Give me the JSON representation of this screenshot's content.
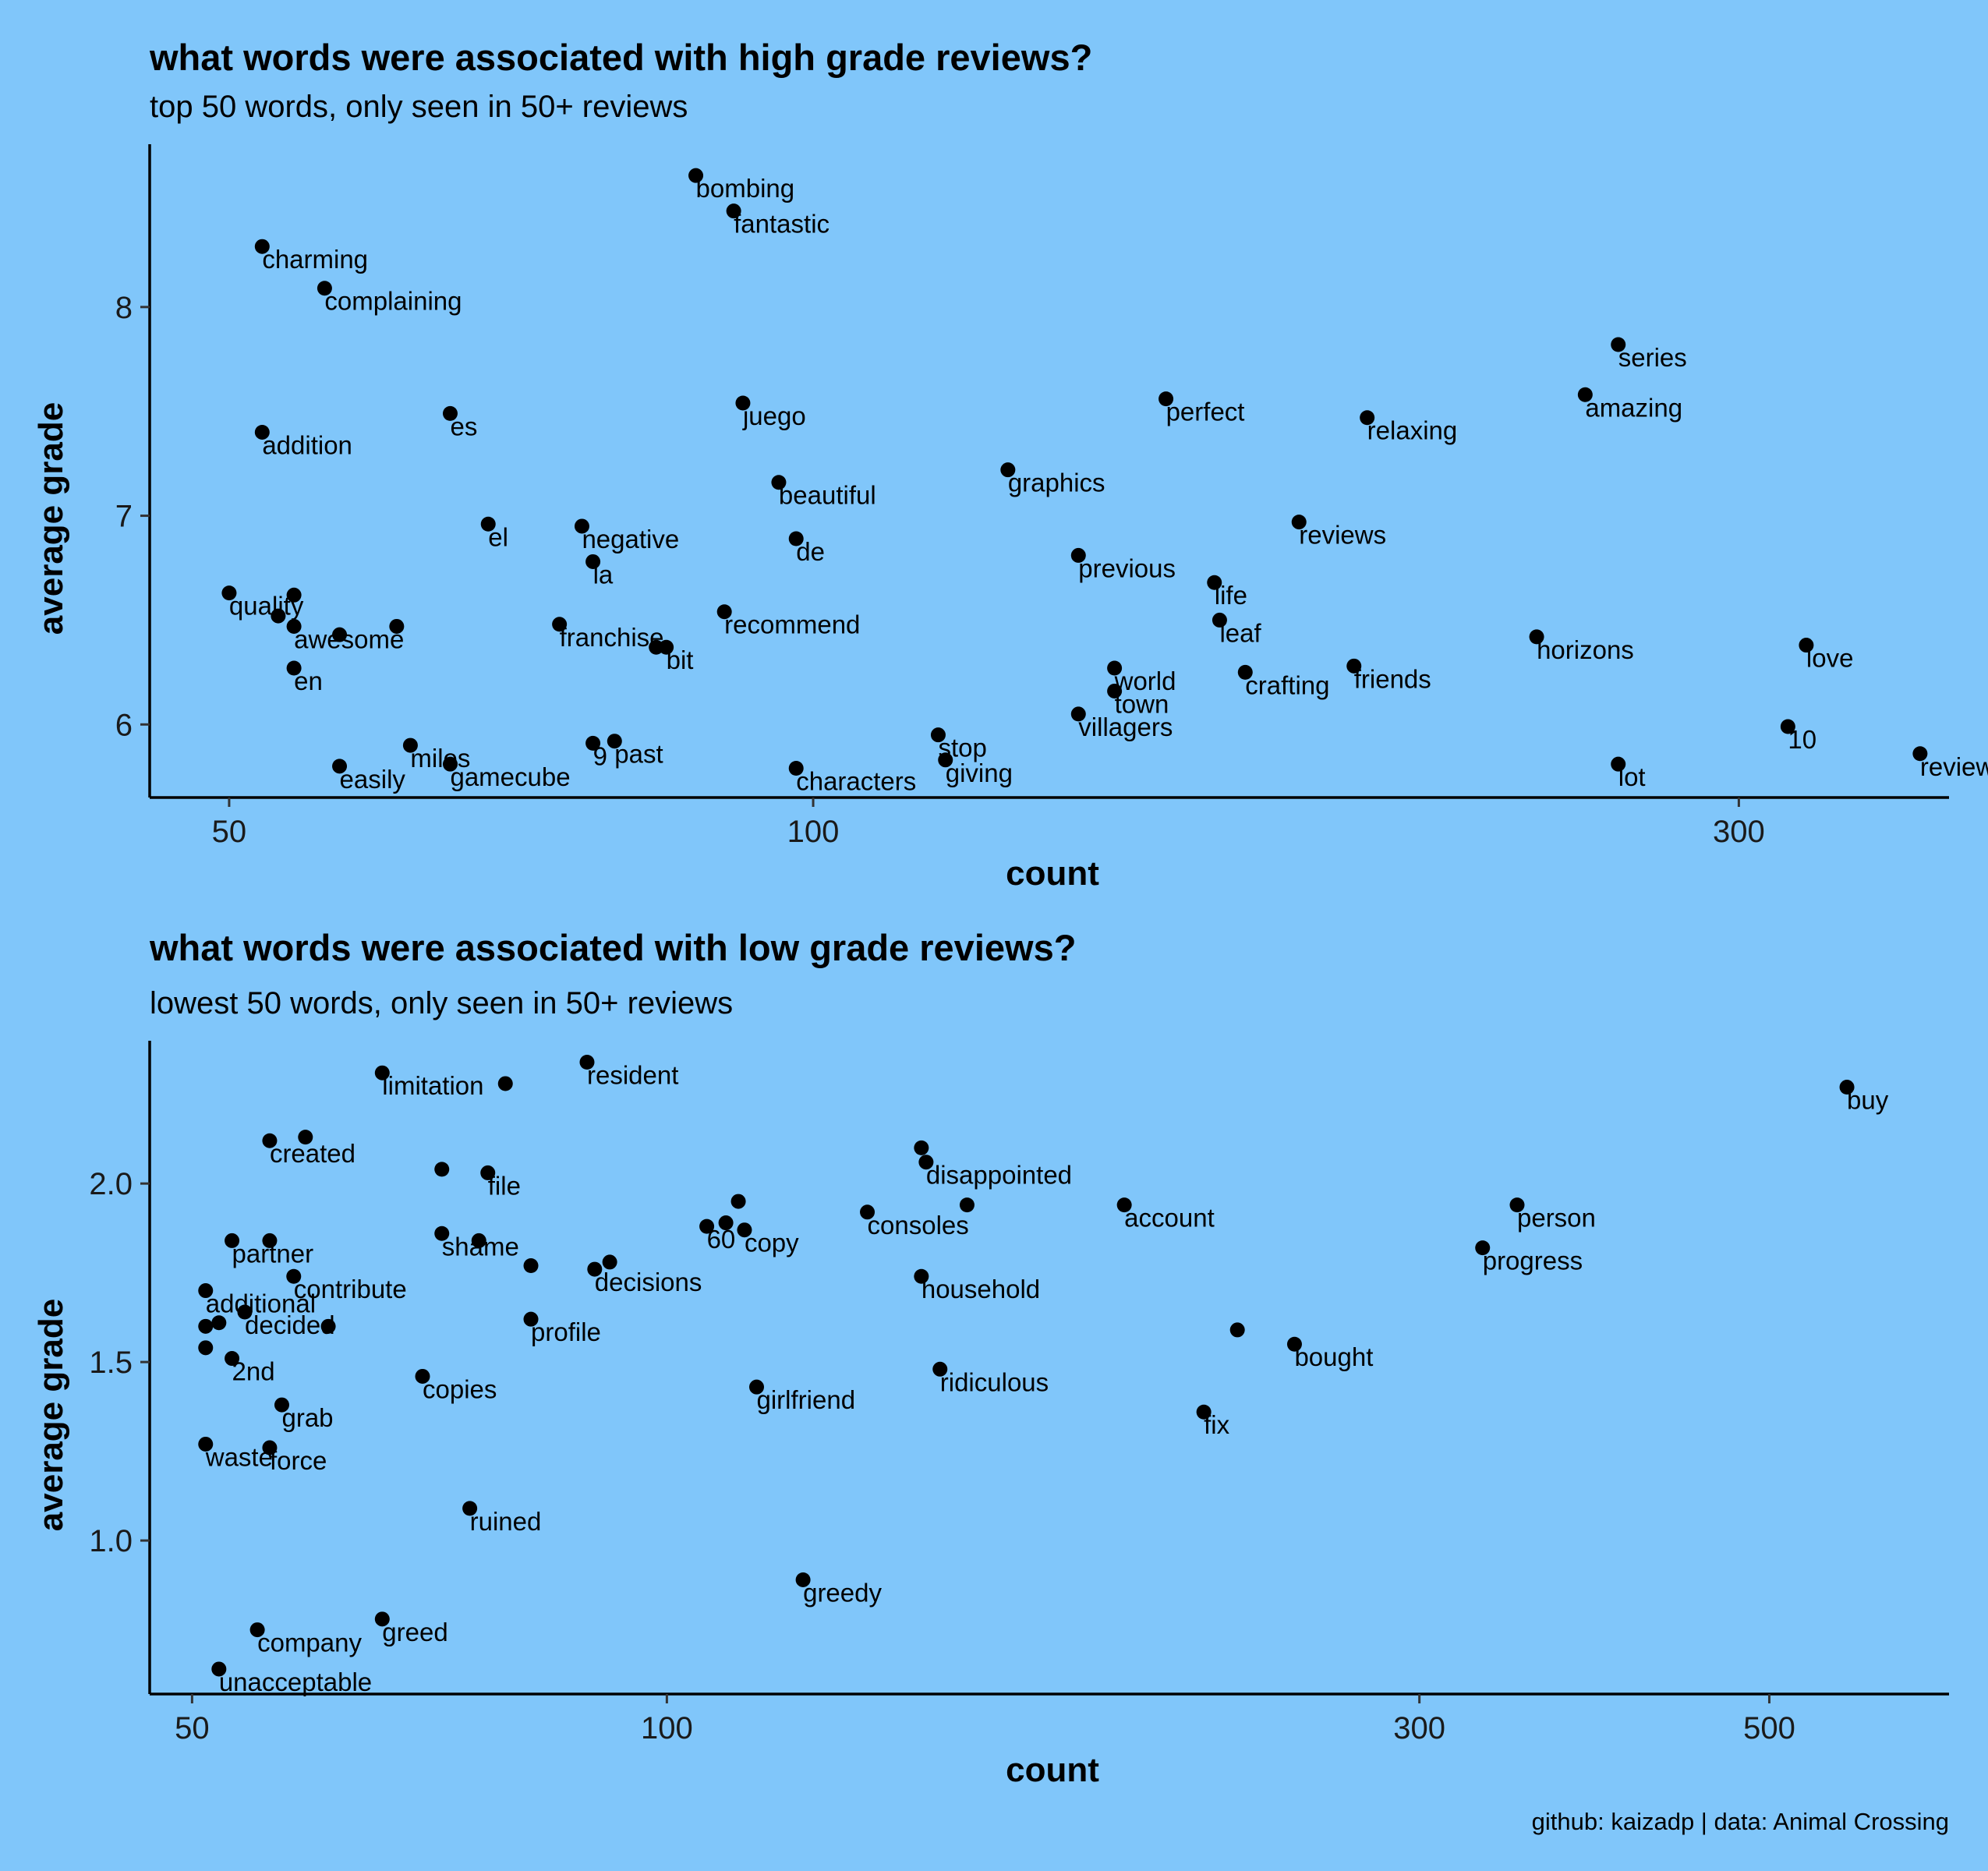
{
  "caption": "github: kaizadp | data: Animal Crossing",
  "chart_data": [
    {
      "type": "scatter",
      "title": "what words were associated with high grade reviews?",
      "subtitle": "top 50 words, only seen in 50+ reviews",
      "xlabel": "count",
      "ylabel": "average grade",
      "x_scale": "log10",
      "xlim": [
        45.5,
        385
      ],
      "ylim": [
        5.65,
        8.78
      ],
      "x_ticks": [
        50,
        100,
        300
      ],
      "y_ticks": [
        6,
        7,
        8
      ],
      "grid": false,
      "legend": "none",
      "points": [
        {
          "label": "bombing",
          "x": 87,
          "y": 8.63
        },
        {
          "label": "fantastic",
          "x": 91,
          "y": 8.46
        },
        {
          "label": "charming",
          "x": 52,
          "y": 8.29
        },
        {
          "label": "complaining",
          "x": 56,
          "y": 8.09
        },
        {
          "label": "series",
          "x": 260,
          "y": 7.82
        },
        {
          "label": "amazing",
          "x": 250,
          "y": 7.58
        },
        {
          "label": "perfect",
          "x": 152,
          "y": 7.56
        },
        {
          "label": "juego",
          "x": 92,
          "y": 7.54
        },
        {
          "label": "es",
          "x": 65,
          "y": 7.49
        },
        {
          "label": "relaxing",
          "x": 193,
          "y": 7.47
        },
        {
          "label": "addition",
          "x": 52,
          "y": 7.4
        },
        {
          "label": "graphics",
          "x": 126,
          "y": 7.22
        },
        {
          "label": "beautiful",
          "x": 96,
          "y": 7.16
        },
        {
          "label": "reviews",
          "x": 178,
          "y": 6.97
        },
        {
          "label": "el",
          "x": 68,
          "y": 6.96
        },
        {
          "label": "negative",
          "x": 76,
          "y": 6.95
        },
        {
          "label": "de",
          "x": 98,
          "y": 6.89
        },
        {
          "label": "previous",
          "x": 137,
          "y": 6.81
        },
        {
          "label": "la",
          "x": 77,
          "y": 6.78
        },
        {
          "label": "life",
          "x": 161,
          "y": 6.68
        },
        {
          "label": "quality",
          "x": 50,
          "y": 6.63
        },
        {
          "label": "",
          "x": 54,
          "y": 6.62
        },
        {
          "label": "",
          "x": 53,
          "y": 6.52
        },
        {
          "label": "recommend",
          "x": 90,
          "y": 6.54
        },
        {
          "label": "leaf",
          "x": 162,
          "y": 6.5
        },
        {
          "label": "awesome",
          "x": 54,
          "y": 6.47
        },
        {
          "label": "",
          "x": 61,
          "y": 6.47
        },
        {
          "label": "franchise",
          "x": 74,
          "y": 6.48
        },
        {
          "label": "",
          "x": 57,
          "y": 6.43
        },
        {
          "label": "horizons",
          "x": 236,
          "y": 6.42
        },
        {
          "label": "love",
          "x": 325,
          "y": 6.38
        },
        {
          "label": "",
          "x": 83,
          "y": 6.37
        },
        {
          "label": "bit",
          "x": 84,
          "y": 6.37
        },
        {
          "label": "friends",
          "x": 190,
          "y": 6.28
        },
        {
          "label": "en",
          "x": 54,
          "y": 6.27
        },
        {
          "label": "world",
          "x": 143,
          "y": 6.27
        },
        {
          "label": "crafting",
          "x": 167,
          "y": 6.25
        },
        {
          "label": "town",
          "x": 143,
          "y": 6.16
        },
        {
          "label": "villagers",
          "x": 137,
          "y": 6.05
        },
        {
          "label": "10",
          "x": 318,
          "y": 5.99
        },
        {
          "label": "stop",
          "x": 116,
          "y": 5.95
        },
        {
          "label": "9",
          "x": 77,
          "y": 5.91
        },
        {
          "label": "past",
          "x": 79,
          "y": 5.92
        },
        {
          "label": "miles",
          "x": 62,
          "y": 5.9
        },
        {
          "label": "review",
          "x": 372,
          "y": 5.86
        },
        {
          "label": "giving",
          "x": 117,
          "y": 5.83
        },
        {
          "label": "lot",
          "x": 260,
          "y": 5.81
        },
        {
          "label": "gamecube",
          "x": 65,
          "y": 5.81
        },
        {
          "label": "easily",
          "x": 57,
          "y": 5.8
        },
        {
          "label": "characters",
          "x": 98,
          "y": 5.79
        }
      ]
    },
    {
      "type": "scatter",
      "title": "what words were associated with low grade reviews?",
      "subtitle": "lowest 50 words, only seen in 50+ reviews",
      "xlabel": "count",
      "ylabel": "average grade",
      "x_scale": "log10",
      "xlim": [
        47,
        650
      ],
      "ylim": [
        0.57,
        2.4
      ],
      "x_ticks": [
        50,
        100,
        300,
        500
      ],
      "y_ticks": [
        1.0,
        1.5,
        2.0
      ],
      "grid": false,
      "legend": "none",
      "points": [
        {
          "label": "resident",
          "x": 89,
          "y": 2.34
        },
        {
          "label": "limitation",
          "x": 66,
          "y": 2.31
        },
        {
          "label": "",
          "x": 79,
          "y": 2.28
        },
        {
          "label": "buy",
          "x": 560,
          "y": 2.27
        },
        {
          "label": "created",
          "x": 56,
          "y": 2.12
        },
        {
          "label": "",
          "x": 59,
          "y": 2.13
        },
        {
          "label": "",
          "x": 145,
          "y": 2.1
        },
        {
          "label": "disappointed",
          "x": 146,
          "y": 2.06
        },
        {
          "label": "",
          "x": 72,
          "y": 2.04
        },
        {
          "label": "file",
          "x": 77,
          "y": 2.03
        },
        {
          "label": "",
          "x": 111,
          "y": 1.95
        },
        {
          "label": "person",
          "x": 346,
          "y": 1.94
        },
        {
          "label": "account",
          "x": 195,
          "y": 1.94
        },
        {
          "label": "",
          "x": 155,
          "y": 1.94
        },
        {
          "label": "consoles",
          "x": 134,
          "y": 1.92
        },
        {
          "label": "60",
          "x": 106,
          "y": 1.88
        },
        {
          "label": "",
          "x": 109,
          "y": 1.89
        },
        {
          "label": "copy",
          "x": 112,
          "y": 1.87
        },
        {
          "label": "shame",
          "x": 72,
          "y": 1.86
        },
        {
          "label": "",
          "x": 76,
          "y": 1.84
        },
        {
          "label": "partner",
          "x": 53,
          "y": 1.84
        },
        {
          "label": "",
          "x": 56,
          "y": 1.84
        },
        {
          "label": "progress",
          "x": 329,
          "y": 1.82
        },
        {
          "label": "",
          "x": 82,
          "y": 1.77
        },
        {
          "label": "decisions",
          "x": 90,
          "y": 1.76
        },
        {
          "label": "",
          "x": 92,
          "y": 1.78
        },
        {
          "label": "contribute",
          "x": 58,
          "y": 1.74
        },
        {
          "label": "household",
          "x": 145,
          "y": 1.74
        },
        {
          "label": "additional",
          "x": 51,
          "y": 1.7
        },
        {
          "label": "decided",
          "x": 54,
          "y": 1.64
        },
        {
          "label": "profile",
          "x": 82,
          "y": 1.62
        },
        {
          "label": "",
          "x": 51,
          "y": 1.6
        },
        {
          "label": "",
          "x": 52,
          "y": 1.61
        },
        {
          "label": "",
          "x": 61,
          "y": 1.6
        },
        {
          "label": "",
          "x": 230,
          "y": 1.59
        },
        {
          "label": "bought",
          "x": 250,
          "y": 1.55
        },
        {
          "label": "",
          "x": 51,
          "y": 1.54
        },
        {
          "label": "2nd",
          "x": 53,
          "y": 1.51
        },
        {
          "label": "ridiculous",
          "x": 149,
          "y": 1.48
        },
        {
          "label": "copies",
          "x": 70,
          "y": 1.46
        },
        {
          "label": "girlfriend",
          "x": 114,
          "y": 1.43
        },
        {
          "label": "grab",
          "x": 57,
          "y": 1.38
        },
        {
          "label": "fix",
          "x": 219,
          "y": 1.36
        },
        {
          "label": "waste",
          "x": 51,
          "y": 1.27
        },
        {
          "label": "force",
          "x": 56,
          "y": 1.26
        },
        {
          "label": "ruined",
          "x": 75,
          "y": 1.09
        },
        {
          "label": "greedy",
          "x": 122,
          "y": 0.89
        },
        {
          "label": "greed",
          "x": 66,
          "y": 0.78
        },
        {
          "label": "company",
          "x": 55,
          "y": 0.75
        },
        {
          "label": "unacceptable",
          "x": 52,
          "y": 0.64
        }
      ]
    }
  ]
}
